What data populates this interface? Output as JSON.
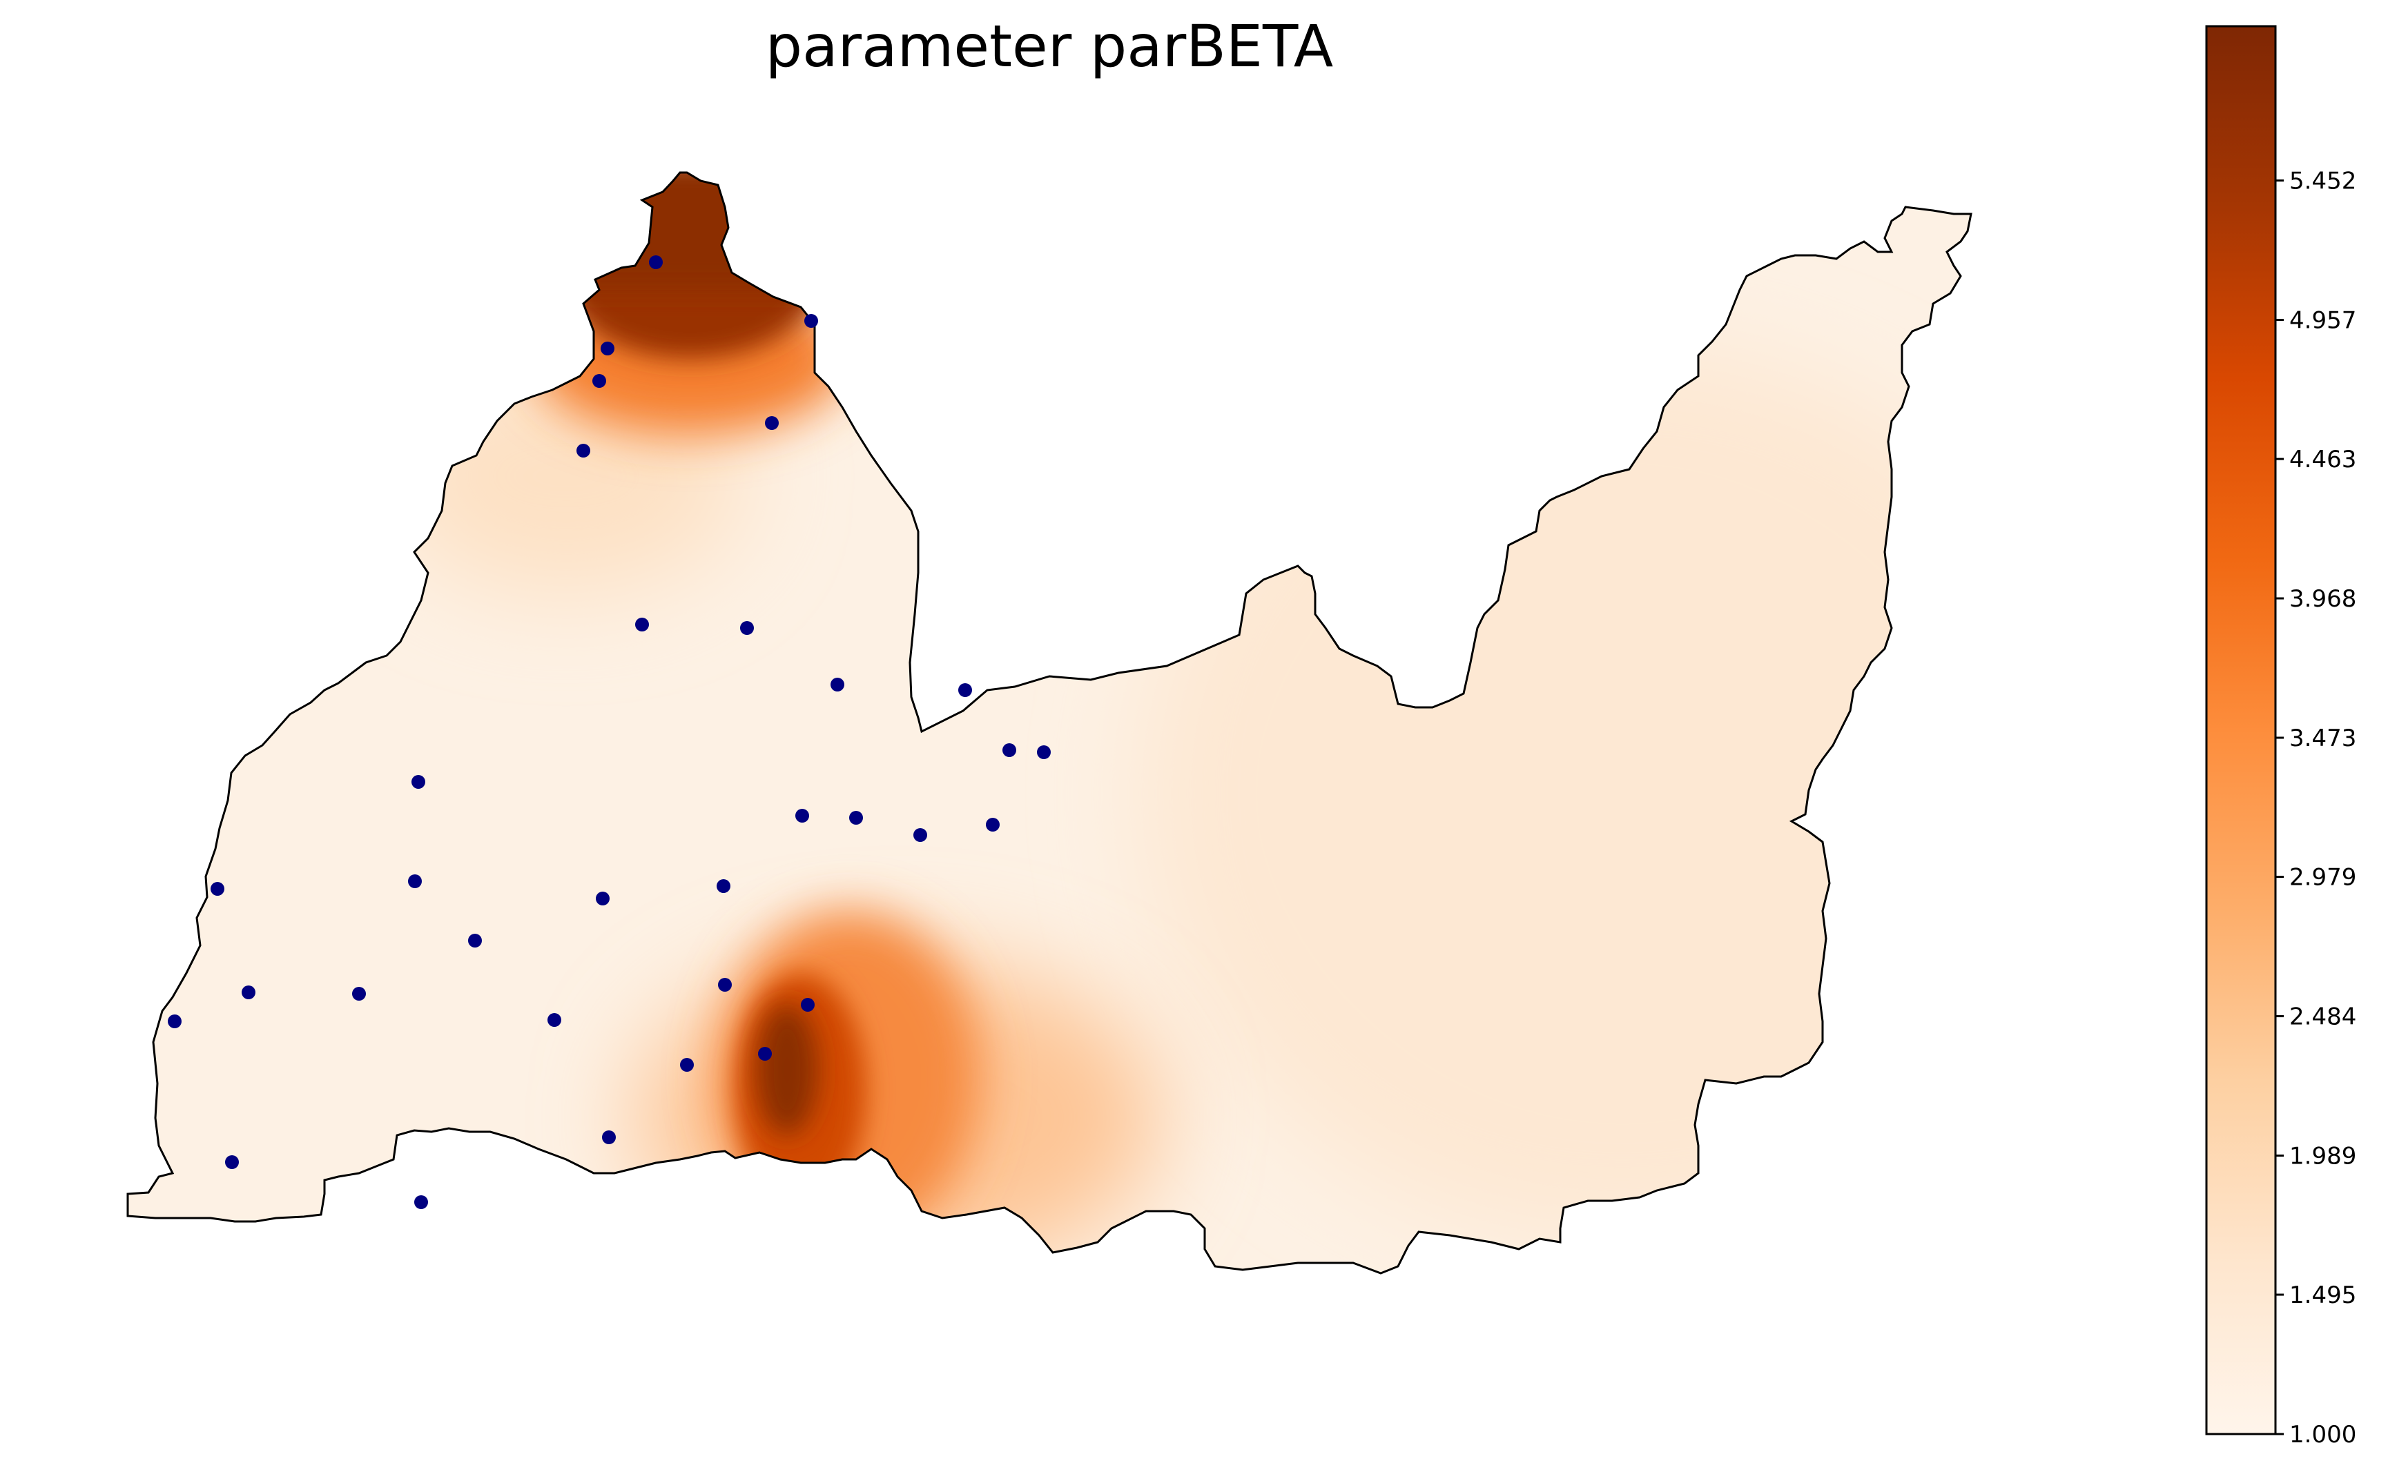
{
  "title": "parameter parBETA",
  "colorbar": {
    "ticks": [
      "1.000",
      "1.495",
      "1.989",
      "2.484",
      "2.979",
      "3.473",
      "3.968",
      "4.463",
      "4.957",
      "5.452"
    ],
    "min": 1.0,
    "max": 6.0,
    "colormap": "Oranges",
    "colors": [
      "#fff5eb",
      "#fee6ce",
      "#fdd0a2",
      "#fdae6b",
      "#fd8d3c",
      "#f16913",
      "#d94801",
      "#a63603",
      "#7f2704"
    ]
  },
  "stations": {
    "marker_color": "#000080",
    "count": 34
  },
  "colors": {
    "outline": "#000000",
    "background": "#ffffff"
  }
}
